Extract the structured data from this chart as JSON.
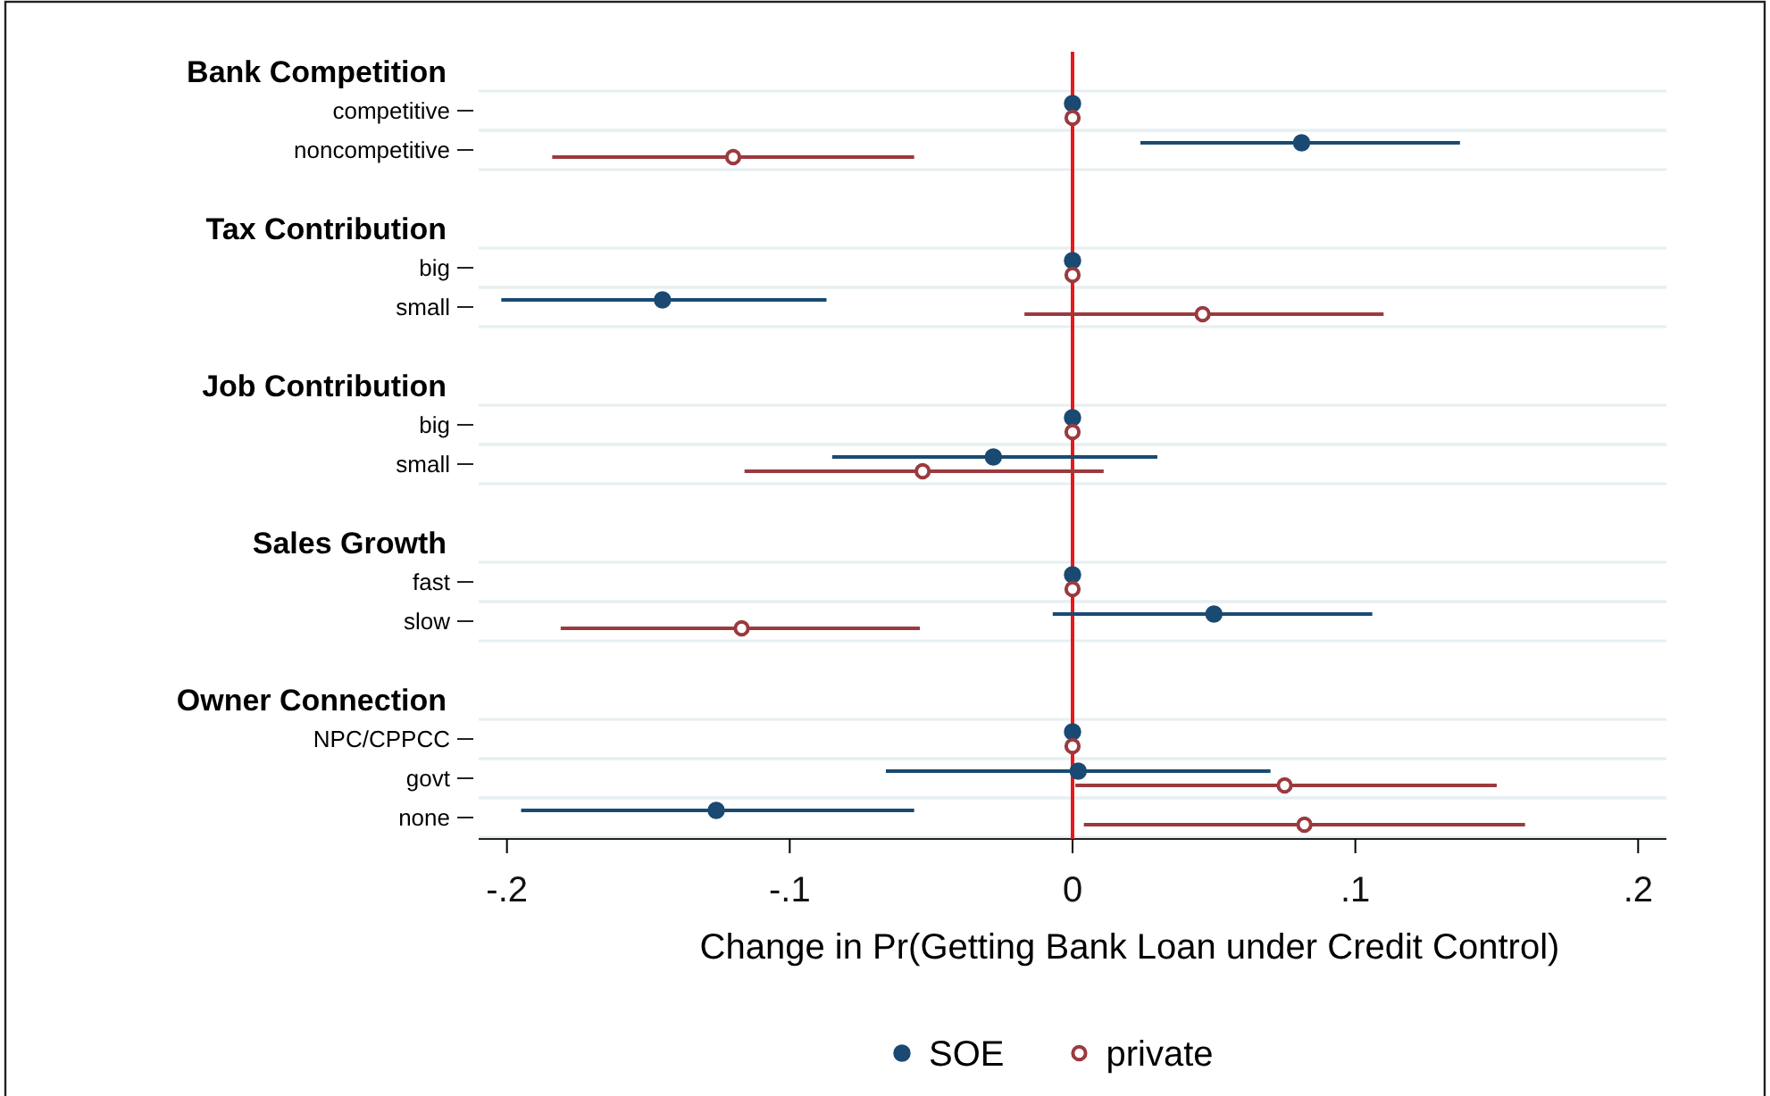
{
  "chart_data": {
    "type": "scatter",
    "orientation": "horizontal",
    "xlabel": "Change in Pr(Getting Bank Loan under Credit Control)",
    "categories": [
      null,
      "competitive",
      "noncompetitive",
      null,
      null,
      "big",
      "small",
      null,
      null,
      "big",
      "small",
      null,
      null,
      "fast",
      "slow",
      null,
      null,
      "NPC/CPPCC",
      "govt",
      "none"
    ],
    "annotations": [
      "Bank Competition",
      "Tax Contribution",
      "Job Contribution",
      "Sales Growth",
      "Owner Connection"
    ],
    "series": [
      {
        "name": "SOE",
        "color": "#1a4a72",
        "values": [
          null,
          0,
          0.081,
          null,
          null,
          0,
          -0.145,
          null,
          null,
          0,
          -0.028,
          null,
          null,
          0,
          0.05,
          null,
          null,
          0,
          0.002,
          -0.126
        ],
        "errors": [
          null,
          null,
          [
            0.024,
            0.137
          ],
          null,
          null,
          null,
          [
            -0.202,
            -0.087
          ],
          null,
          null,
          null,
          [
            -0.085,
            0.03
          ],
          null,
          null,
          null,
          [
            -0.007,
            0.106
          ],
          null,
          null,
          null,
          [
            -0.066,
            0.07
          ],
          [
            -0.195,
            -0.056
          ]
        ]
      },
      {
        "name": "private",
        "color": "#9b3a3e",
        "values": [
          null,
          0,
          -0.12,
          null,
          null,
          0,
          0.046,
          null,
          null,
          0,
          -0.053,
          null,
          null,
          0,
          -0.117,
          null,
          null,
          0,
          0.075,
          0.082
        ],
        "errors": [
          null,
          null,
          [
            -0.184,
            -0.056
          ],
          null,
          null,
          null,
          [
            -0.017,
            0.11
          ],
          null,
          null,
          null,
          [
            -0.116,
            0.011
          ],
          null,
          null,
          null,
          [
            -0.181,
            -0.054
          ],
          null,
          null,
          null,
          [
            0.001,
            0.15
          ],
          [
            0.004,
            0.16
          ]
        ]
      }
    ],
    "xlim": [
      -0.21,
      0.21
    ],
    "xticks": [
      {
        "value": -0.2,
        "label": "-.2"
      },
      {
        "value": -0.1,
        "label": "-.1"
      },
      0,
      {
        "value": 0.1,
        "label": ".1"
      },
      {
        "value": 0.2,
        "label": ".2"
      }
    ],
    "ref_lines": [
      {
        "axis": "x",
        "value": 0,
        "color": "#e8191b"
      }
    ],
    "grid": true,
    "legend": "bottom",
    "marker": "circle"
  }
}
